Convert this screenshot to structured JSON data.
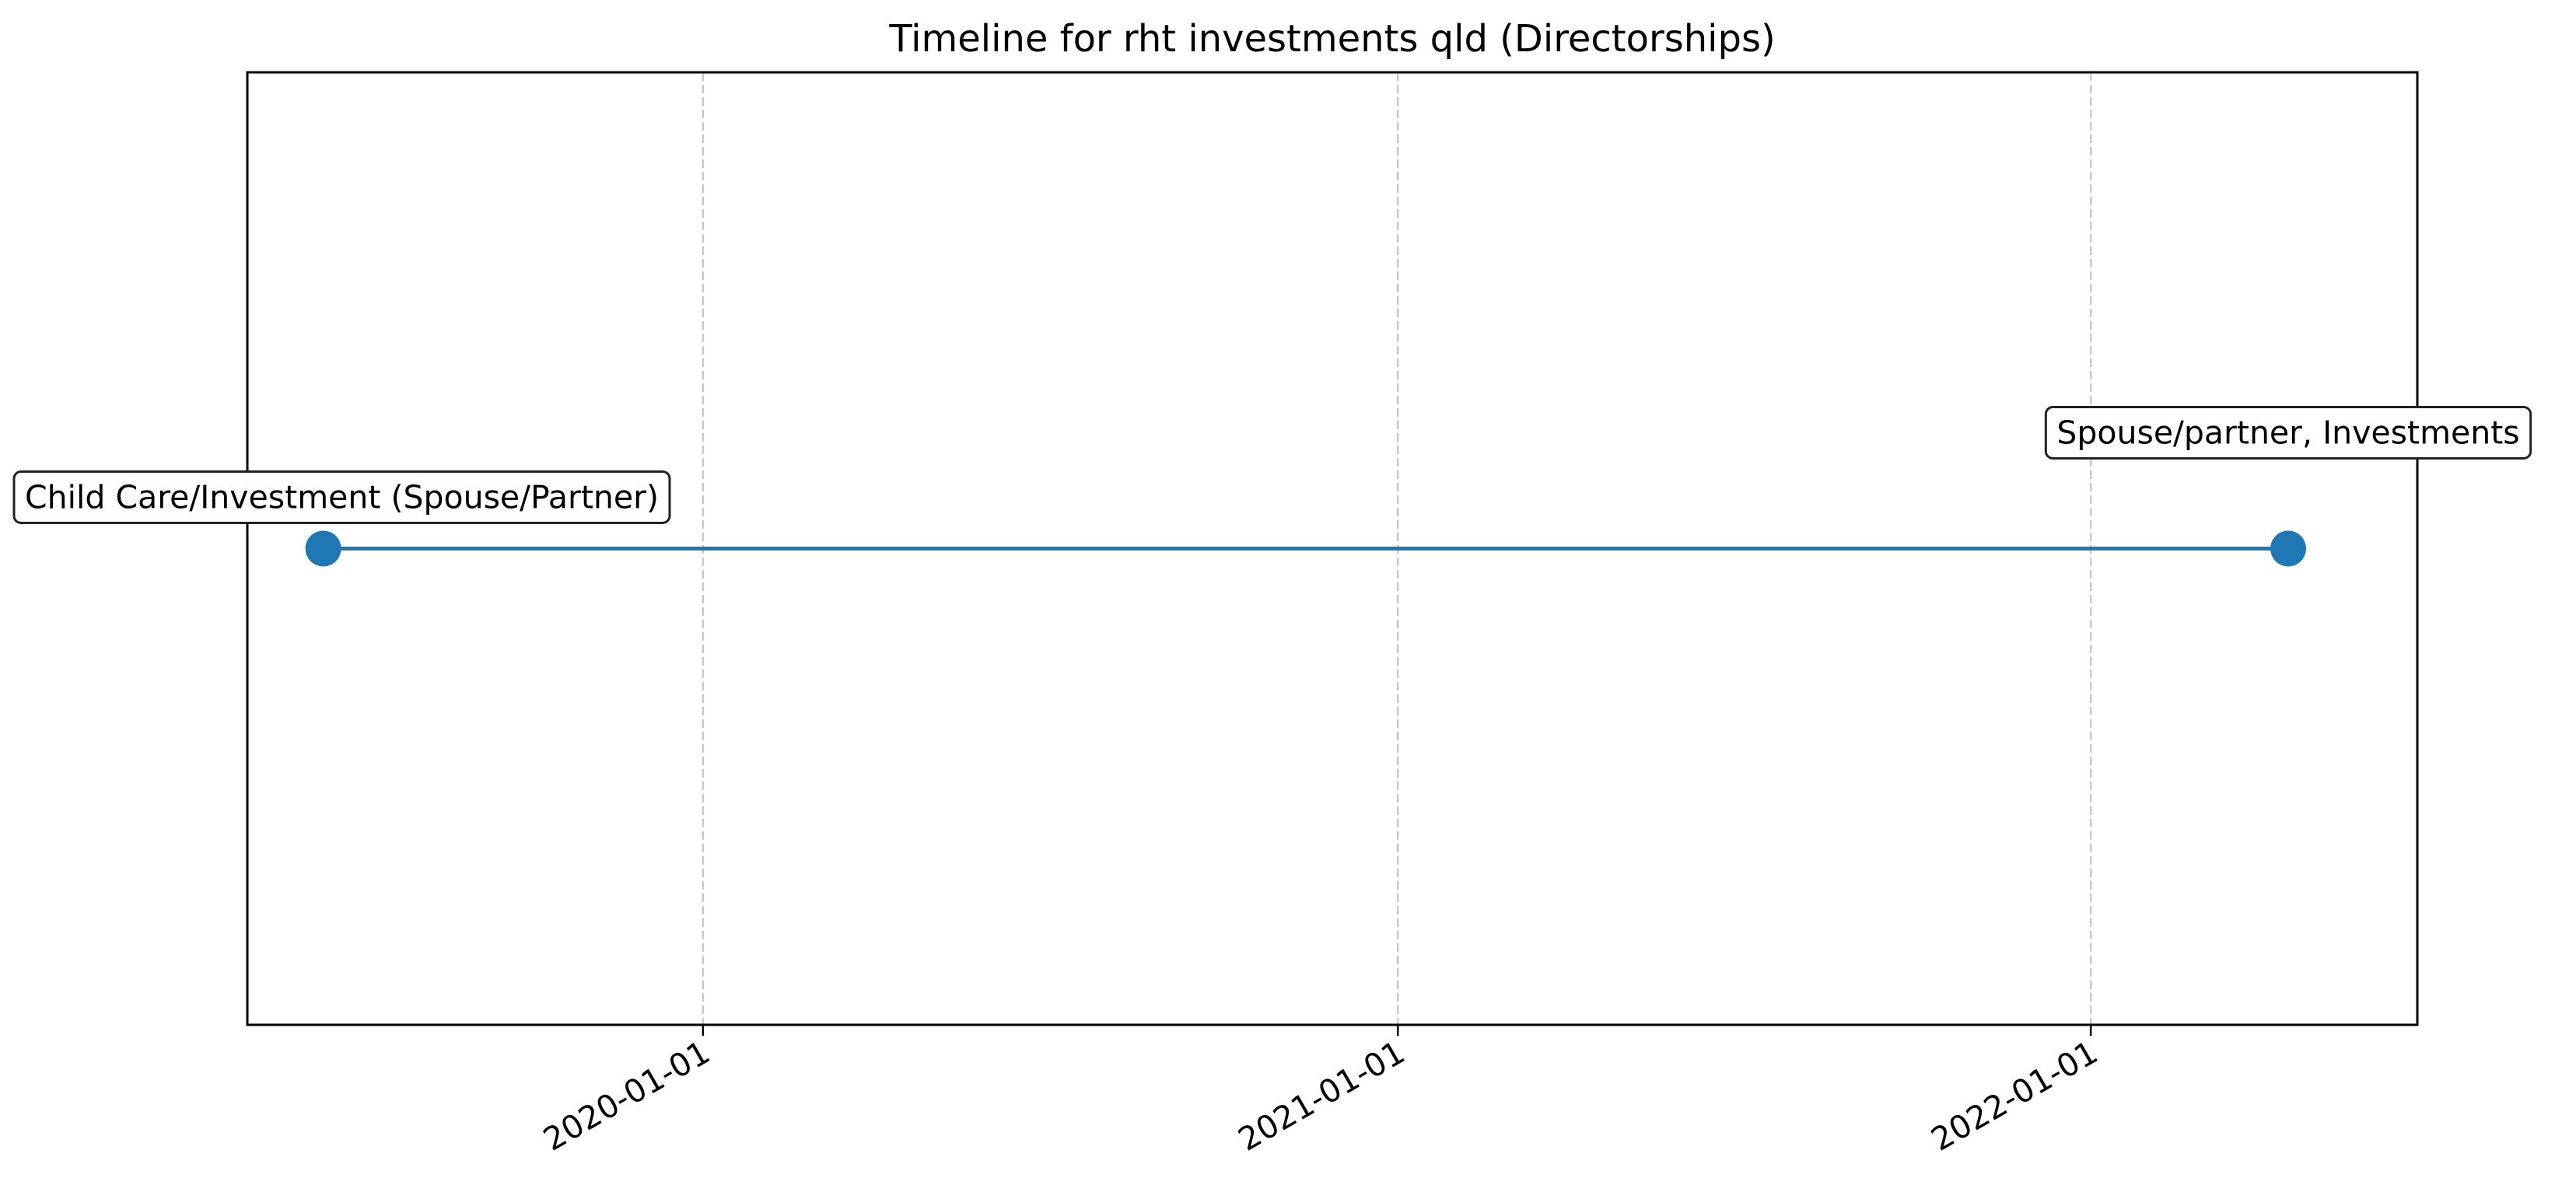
{
  "chart_data": {
    "type": "line",
    "title": "Timeline for rht investments qld (Directorships)",
    "xlabel": "",
    "ylabel": "",
    "x_axis_type": "date",
    "xlim": [
      "2019-05-06",
      "2022-06-22"
    ],
    "ylim": [
      -1,
      1
    ],
    "x_ticks": [
      "2020-01-01",
      "2021-01-01",
      "2022-01-01"
    ],
    "grid": {
      "x": true,
      "y": false,
      "style": "dashed"
    },
    "series": [
      {
        "color": "#1f77b4",
        "points": [
          {
            "x": "2019-06-15",
            "y": 0,
            "label": "Child Care/Investment (Spouse/Partner)"
          },
          {
            "x": "2022-04-15",
            "y": 0,
            "label": "Spouse/partner, Investments"
          }
        ]
      }
    ],
    "colors": {
      "series": "#1f77b4",
      "grid": "#c8c8c8",
      "frame": "#000000"
    }
  }
}
